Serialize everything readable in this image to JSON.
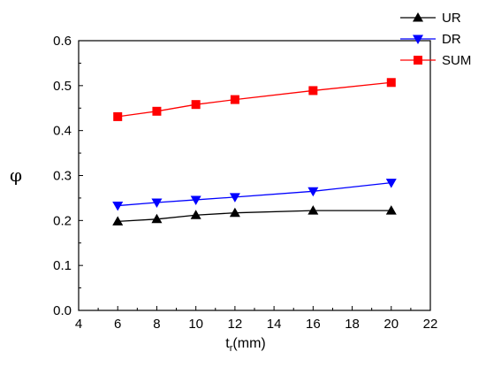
{
  "chart_data": {
    "type": "line",
    "title": "",
    "xlabel": {
      "main": "t",
      "sub": "r",
      "suffix": "(mm)"
    },
    "ylabel": "φ",
    "xlim": [
      4,
      22
    ],
    "ylim": [
      0.0,
      0.6
    ],
    "x_ticks": [
      4,
      6,
      8,
      10,
      12,
      14,
      16,
      18,
      20,
      22
    ],
    "y_ticks": [
      "0.0",
      "0.1",
      "0.2",
      "0.3",
      "0.4",
      "0.5",
      "0.6"
    ],
    "grid": false,
    "legend_position": "top-right",
    "x": [
      6,
      8,
      10,
      12,
      16,
      20
    ],
    "series": [
      {
        "name": "UR",
        "color": "#000000",
        "marker": "triangle-up",
        "values": [
          0.198,
          0.203,
          0.212,
          0.217,
          0.222,
          0.222
        ]
      },
      {
        "name": "DR",
        "color": "#0000ff",
        "marker": "triangle-down",
        "values": [
          0.233,
          0.24,
          0.246,
          0.252,
          0.265,
          0.284
        ]
      },
      {
        "name": "SUM",
        "color": "#ff0000",
        "marker": "square",
        "values": [
          0.431,
          0.443,
          0.458,
          0.469,
          0.489,
          0.507
        ]
      }
    ]
  }
}
